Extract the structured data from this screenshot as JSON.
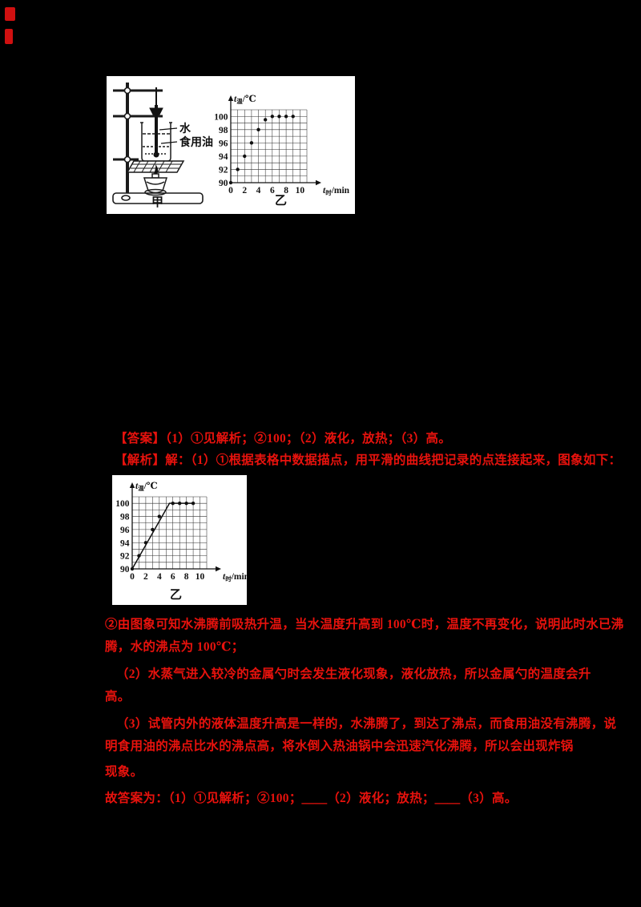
{
  "page": {
    "background_color": "#000000",
    "text_color": "#e8120d"
  },
  "figures": {
    "figure1": {
      "caption_apparatus": "甲",
      "caption_graph": "乙",
      "label_water": "水",
      "label_oil": "食用油"
    },
    "figure2": {
      "caption": "乙"
    }
  },
  "text_lines": {
    "answer": "【答案】（1）①见解析；②100；（2）液化，放热；（3）高。",
    "analysis": "【解析】解：（1）①根据表格中数据描点，用平滑的曲线把记录的点连接起来，图象如下：",
    "para2_line1": "②由图象可知水沸腾前吸热升温，当水温度升高到 100℃时，温度不再变化，说明此时水已沸",
    "para2_line2": "腾，水的沸点为 100℃；",
    "para3_line1": "（2）水蒸气进入较冷的金属勺时会发生液化现象，液化放热，所以金属勺的温度会升",
    "para3_line2": "高。",
    "para4_line1": "（3）试管内外的液体温度升高是一样的，水沸腾了，到达了沸点，而食用油没有沸腾，说",
    "para4_line2": "明食用油的沸点比水的沸点高，将水倒入热油锅中会迅速汽化沸腾，所以会出现炸锅",
    "para4_line3": "现象。",
    "final": "故答案为：（1）①见解析；②100；＿＿（2）液化；放热；＿＿（3）高。"
  },
  "chart_data": [
    {
      "type": "scatter",
      "title": "乙",
      "xlabel": "t时/min",
      "ylabel": "t温/℃",
      "xlabel_parts": {
        "main": "t",
        "sub": "时",
        "unit": "/min"
      },
      "ylabel_parts": {
        "main": "t",
        "sub": "温",
        "unit": "/℃"
      },
      "x_range": [
        0,
        11
      ],
      "y_range": [
        90,
        101
      ],
      "x_ticks": [
        0,
        2,
        4,
        6,
        8,
        10
      ],
      "y_ticks": [
        90,
        92,
        94,
        96,
        98,
        100
      ],
      "grid": true,
      "legend": "none",
      "points": [
        [
          0,
          90
        ],
        [
          1,
          92
        ],
        [
          2,
          94
        ],
        [
          3,
          96
        ],
        [
          4,
          98
        ],
        [
          5,
          99.5
        ],
        [
          6,
          100
        ],
        [
          7,
          100
        ],
        [
          8,
          100
        ],
        [
          9,
          100
        ]
      ],
      "line": null
    },
    {
      "type": "line",
      "title": "乙",
      "xlabel": "t时/min",
      "ylabel": "t温/℃",
      "xlabel_parts": {
        "main": "t",
        "sub": "时",
        "unit": "/min"
      },
      "ylabel_parts": {
        "main": "t",
        "sub": "温",
        "unit": "/℃"
      },
      "x_range": [
        0,
        11
      ],
      "y_range": [
        90,
        101
      ],
      "x_ticks": [
        0,
        2,
        4,
        6,
        8,
        10
      ],
      "y_ticks": [
        90,
        92,
        94,
        96,
        98,
        100
      ],
      "grid": true,
      "legend": "none",
      "points": [
        [
          0,
          90
        ],
        [
          1,
          92
        ],
        [
          2,
          94
        ],
        [
          3,
          96
        ],
        [
          4,
          98
        ],
        [
          6,
          100
        ],
        [
          7,
          100
        ],
        [
          8,
          100
        ],
        [
          9,
          100
        ]
      ],
      "line": [
        [
          0,
          90
        ],
        [
          5.5,
          100
        ],
        [
          9,
          100
        ]
      ]
    }
  ]
}
